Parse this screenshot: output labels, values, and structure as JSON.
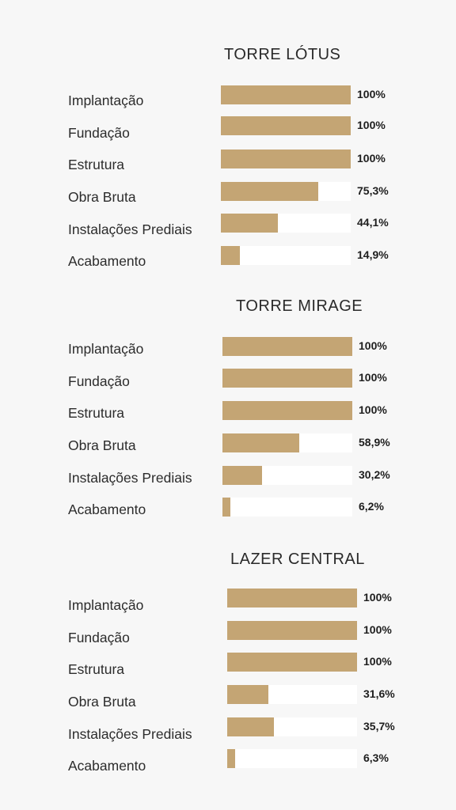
{
  "colors": {
    "background": "#f7f7f7",
    "bar_fill": "#c4a574",
    "bar_track": "#ffffff",
    "text": "#2a2a2a"
  },
  "chart_data": [
    {
      "type": "bar",
      "title": "TORRE LÓTUS",
      "categories": [
        "Implantação",
        "Fundação",
        "Estrutura",
        "Obra Bruta",
        "Instalações Prediais",
        "Acabamento"
      ],
      "values": [
        100,
        100,
        100,
        75.3,
        44.1,
        14.9
      ],
      "value_labels": [
        "100%",
        "100%",
        "100%",
        "75,3%",
        "44,1%",
        "14,9%"
      ],
      "xlim": [
        0,
        100
      ],
      "orientation": "horizontal",
      "grid": false
    },
    {
      "type": "bar",
      "title": "TORRE MIRAGE",
      "categories": [
        "Implantação",
        "Fundação",
        "Estrutura",
        "Obra Bruta",
        "Instalações Prediais",
        "Acabamento"
      ],
      "values": [
        100,
        100,
        100,
        58.9,
        30.2,
        6.2
      ],
      "value_labels": [
        "100%",
        "100%",
        "100%",
        "58,9%",
        "30,2%",
        "6,2%"
      ],
      "xlim": [
        0,
        100
      ],
      "orientation": "horizontal",
      "grid": false
    },
    {
      "type": "bar",
      "title": "LAZER CENTRAL",
      "categories": [
        "Implantação",
        "Fundação",
        "Estrutura",
        "Obra Bruta",
        "Instalações Prediais",
        "Acabamento"
      ],
      "values": [
        100,
        100,
        100,
        31.6,
        35.7,
        6.3
      ],
      "value_labels": [
        "100%",
        "100%",
        "100%",
        "31,6%",
        "35,7%",
        "6,3%"
      ],
      "xlim": [
        0,
        100
      ],
      "orientation": "horizontal",
      "grid": false
    }
  ]
}
